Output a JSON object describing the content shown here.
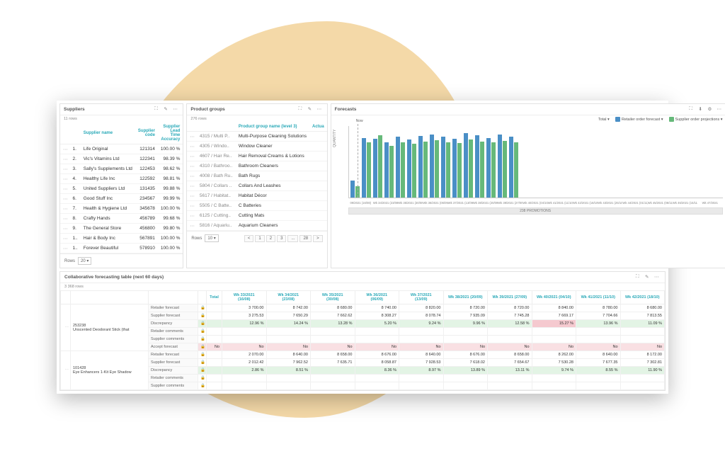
{
  "colors": {
    "teal": "#2aa9b8",
    "blue": "#4a8fc6",
    "green": "#66b97a",
    "blob": "#f4d9a8",
    "hl_green": "#e3f4e5",
    "hl_pink": "#f9e0e3"
  },
  "suppliers": {
    "title": "Suppliers",
    "rowcount_label": "11 rows",
    "columns": [
      "",
      "Supplier name",
      "Supplier code",
      "Supplier Lead Time Accuracy"
    ],
    "rows": [
      {
        "n": "1.",
        "name": "Life Original",
        "code": "121314",
        "acc": "100.00 %"
      },
      {
        "n": "2.",
        "name": "Vic's Vitamins Ltd",
        "code": "122341",
        "acc": "98.39 %"
      },
      {
        "n": "3.",
        "name": "Sally's Supplements Ltd",
        "code": "122453",
        "acc": "98.62 %"
      },
      {
        "n": "4.",
        "name": "Healthy Life Inc",
        "code": "122592",
        "acc": "98.81 %"
      },
      {
        "n": "5.",
        "name": "United Suppliers Ltd",
        "code": "131435",
        "acc": "99.88 %"
      },
      {
        "n": "6.",
        "name": "Good Stuff Inc",
        "code": "234567",
        "acc": "99.99 %"
      },
      {
        "n": "7.",
        "name": "Health & Hygiene Ltd",
        "code": "345678",
        "acc": "100.00 %"
      },
      {
        "n": "8.",
        "name": "Crafty Hands",
        "code": "456789",
        "acc": "99.68 %"
      },
      {
        "n": "9.",
        "name": "The General Store",
        "code": "456800",
        "acc": "99.80 %"
      },
      {
        "n": "1..",
        "name": "Hair & Body Inc",
        "code": "567891",
        "acc": "100.00 %"
      },
      {
        "n": "1..",
        "name": "Forever Beautiful",
        "code": "578910",
        "acc": "100.00 %"
      }
    ],
    "rows_label": "Rows",
    "rows_select": "20"
  },
  "groups": {
    "title": "Product groups",
    "rowcount_label": "276 rows",
    "columns": [
      "",
      "Product group name (level 3)",
      "Actua"
    ],
    "rows": [
      {
        "code": "4315 / Multi P..",
        "name": "Multi-Purpose Cleaning Solutions"
      },
      {
        "code": "4305 / Windo..",
        "name": "Window Cleaner"
      },
      {
        "code": "4607 / Hair Re..",
        "name": "Hair Removal Creams & Lotions"
      },
      {
        "code": "4310 / Bathroo..",
        "name": "Bathroom Cleaners"
      },
      {
        "code": "4008 / Bath Ru..",
        "name": "Bath Rugs"
      },
      {
        "code": "5804 / Collars ..",
        "name": "Collars And Leashes"
      },
      {
        "code": "5617 / Habitat..",
        "name": "Habitat Décor"
      },
      {
        "code": "5505 / C Batte..",
        "name": "C Batteries"
      },
      {
        "code": "6125 / Cutting..",
        "name": "Cutting Mats"
      },
      {
        "code": "5816 / Aquariu..",
        "name": "Aquarium Cleaners"
      }
    ],
    "rows_label": "Rows",
    "rows_select": "10",
    "pager": [
      "<",
      "1",
      "2",
      "3",
      "...",
      "28",
      ">"
    ]
  },
  "forecast": {
    "title": "Forecasts",
    "legend_total": "Total ▾",
    "legend_a": "Retailer order forecast ▾",
    "legend_b": "Supplier order projections ▾",
    "now_label": "Now",
    "ylabel": "QUANTITY",
    "ymax": 900000,
    "bars": [
      {
        "a": 220000,
        "b": 140000
      },
      {
        "a": 760000,
        "b": 700000
      },
      {
        "a": 750000,
        "b": 790000
      },
      {
        "a": 700000,
        "b": 660000
      },
      {
        "a": 770000,
        "b": 700000
      },
      {
        "a": 740000,
        "b": 680000
      },
      {
        "a": 780000,
        "b": 710000
      },
      {
        "a": 800000,
        "b": 730000
      },
      {
        "a": 770000,
        "b": 700000
      },
      {
        "a": 750000,
        "b": 690000
      },
      {
        "a": 820000,
        "b": 740000
      },
      {
        "a": 790000,
        "b": 710000
      },
      {
        "a": 760000,
        "b": 700000
      },
      {
        "a": 800000,
        "b": 720000
      },
      {
        "a": 770000,
        "b": 700000
      }
    ],
    "xlabels": [
      "09/2021 (16/08)",
      "Wk 34/2021 (23/08)",
      "Wk 35/2021 (30/08)",
      "Wk 36/2021 (06/09)",
      "Wk 37/2021 (13/09)",
      "Wk 38/2021 (20/09)",
      "Wk 39/2021 (27/09)",
      "Wk 40/2021 (04/10)",
      "Wk 41/2021 (11/10)",
      "Wk 42/2021 (18/10)",
      "Wk 43/2021 (25/10)",
      "Wk 44/2021 (01/11)",
      "Wk 45/2021 (08/11)",
      "Wk 46/2021 (15/11)",
      "Wk 47/2021"
    ],
    "promo_label": "238 PROMOTIONS"
  },
  "grid": {
    "title": "Collaborative forecasting table (next 60 days)",
    "rowcount_label": "3 368 rows",
    "col_total": "Total",
    "weeks": [
      {
        "h1": "Wk 33/2021",
        "h2": "(16/08)"
      },
      {
        "h1": "Wk 34/2021",
        "h2": "(23/08)"
      },
      {
        "h1": "Wk 35/2021",
        "h2": "(30/08)"
      },
      {
        "h1": "Wk 36/2021",
        "h2": "(06/09)"
      },
      {
        "h1": "Wk 37/2021",
        "h2": "(13/09)"
      },
      {
        "h1": "Wk 38/2021 (20/09)",
        "h2": ""
      },
      {
        "h1": "Wk 39/2021 (27/09)",
        "h2": ""
      },
      {
        "h1": "Wk 40/2021 (04/10)",
        "h2": ""
      },
      {
        "h1": "Wk 41/2021 (11/10)",
        "h2": ""
      },
      {
        "h1": "Wk 42/2021 (18/10)",
        "h2": ""
      }
    ],
    "products": [
      {
        "code": "253238",
        "name": "Unscented Deodorant Stick (that",
        "lines": [
          {
            "label": "Retailer forecast",
            "vals": [
              "3 700.00",
              "8 742.00",
              "8 680.00",
              "8 740.00",
              "8 820.00",
              "8 720.00",
              "8 720.00",
              "8 840.00",
              "8 780.00",
              "8 680.00"
            ],
            "cls": ""
          },
          {
            "label": "Supplier forecast",
            "vals": [
              "3 275.53",
              "7 650.29",
              "7 662.62",
              "8 308.27",
              "8 078.74",
              "7 935.09",
              "7 745.28",
              "7 669.17",
              "7 704.66",
              "7 813.55"
            ],
            "cls": ""
          },
          {
            "label": "Discrepancy",
            "vals": [
              "12.96 %",
              "14.24 %",
              "13.28 %",
              "5.20 %",
              "9.24 %",
              "9.96 %",
              "12.58 %",
              "15.27 %",
              "13.96 %",
              "11.09 %"
            ],
            "cls": "hl-green",
            "hlcell": 7
          },
          {
            "label": "Retailer comments",
            "vals": [
              "",
              "",
              "",
              "",
              "",
              "",
              "",
              "",
              "",
              ""
            ],
            "cls": ""
          },
          {
            "label": "Supplier comments",
            "vals": [
              "",
              "",
              "",
              "",
              "",
              "",
              "",
              "",
              "",
              ""
            ],
            "cls": ""
          },
          {
            "label": "Accept forecast",
            "vals": [
              "No",
              "No",
              "No",
              "No",
              "No",
              "No",
              "No",
              "No",
              "No",
              "No"
            ],
            "cls": "hl-pink",
            "pre": "No"
          }
        ]
      },
      {
        "code": "101428",
        "name": "Eye Enhancers 1-Kit Eye Shadow",
        "lines": [
          {
            "label": "Retailer forecast",
            "vals": [
              "2 070.00",
              "8 640.00",
              "8 658.00",
              "8 676.00",
              "8 640.00",
              "8 676.00",
              "8 658.00",
              "8 262.00",
              "8 640.00",
              "8 172.00"
            ],
            "cls": ""
          },
          {
            "label": "Supplier forecast",
            "vals": [
              "2 012.42",
              "7 962.52",
              "7 635.71",
              "8 058.87",
              "7 928.53",
              "7 618.02",
              "7 654.67",
              "7 530.28",
              "7 677.35",
              "7 302.81"
            ],
            "cls": ""
          },
          {
            "label": "Discrepancy",
            "vals": [
              "2.86 %",
              "8.51 %",
              "",
              "8.36 %",
              "8.97 %",
              "13.89 %",
              "13.11 %",
              "9.74 %",
              "8.55 %",
              "11.90 %"
            ],
            "cls": "hl-green"
          },
          {
            "label": "Retailer comments",
            "vals": [
              "",
              "",
              "",
              "",
              "",
              "",
              "",
              "",
              "",
              ""
            ],
            "cls": ""
          },
          {
            "label": "Supplier comments",
            "vals": [
              "",
              "",
              "",
              "",
              "",
              "",
              "",
              "",
              "",
              ""
            ],
            "cls": ""
          }
        ]
      }
    ]
  }
}
